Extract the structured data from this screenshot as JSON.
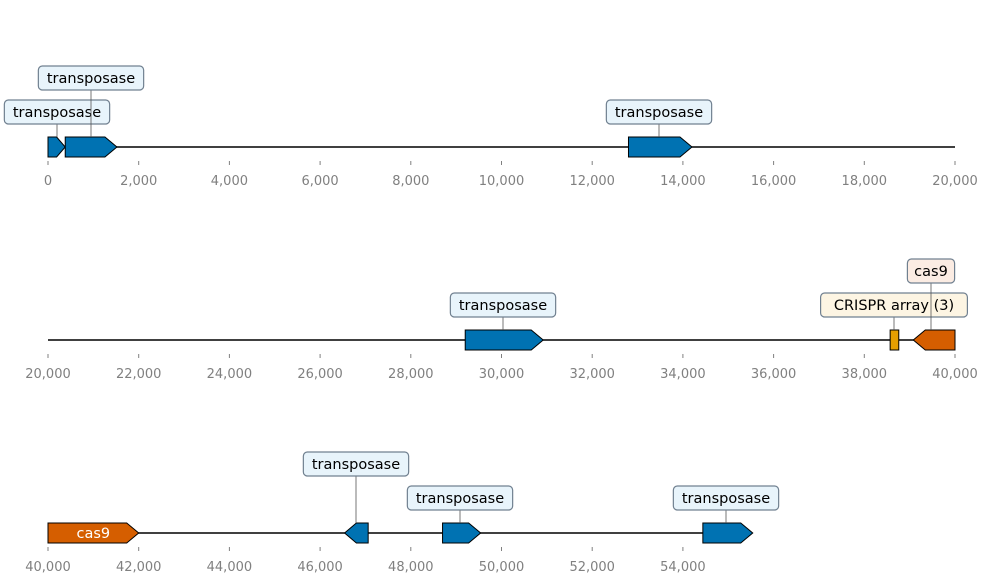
{
  "colors": {
    "transposase": "#0072b2",
    "crispr_array": "#e69f00",
    "cas9": "#d55e00",
    "transposase_box": "#e8f4fb",
    "crispr_box": "#fdf5e3",
    "cas9_box": "#fbece3",
    "box_border": "#708090",
    "tick_text": "#808080"
  },
  "tracks": [
    {
      "ticks": [
        "0",
        "2,000",
        "4,000",
        "6,000",
        "8,000",
        "10,000",
        "12,000",
        "14,000",
        "16,000",
        "18,000",
        "20,000"
      ],
      "features": [
        {
          "label": "transposase",
          "kind": "transposase",
          "start": 0,
          "end": 380,
          "strand": 1
        },
        {
          "label": "transposase",
          "kind": "transposase",
          "start": 380,
          "end": 1520,
          "strand": 1
        },
        {
          "label": "transposase",
          "kind": "transposase",
          "start": 12800,
          "end": 14200,
          "strand": 1
        }
      ]
    },
    {
      "ticks": [
        "20,000",
        "22,000",
        "24,000",
        "26,000",
        "28,000",
        "30,000",
        "32,000",
        "34,000",
        "36,000",
        "38,000",
        "40,000"
      ],
      "features": [
        {
          "label": "transposase",
          "kind": "transposase",
          "start": 29200,
          "end": 30920,
          "strand": 1
        },
        {
          "label": "CRISPR array (3)",
          "kind": "crispr_array",
          "start": 38570,
          "end": 38760,
          "strand": 0
        },
        {
          "label": "cas9",
          "kind": "cas9",
          "start": 39080,
          "end": 40000,
          "strand": -1
        }
      ]
    },
    {
      "ticks": [
        "40,000",
        "42,000",
        "44,000",
        "46,000",
        "48,000",
        "50,000",
        "52,000",
        "54,000"
      ],
      "features": [
        {
          "label": "cas9",
          "kind": "cas9",
          "start": 40000,
          "end": 42000,
          "strand": 1,
          "inline_label": true
        },
        {
          "label": "transposase",
          "kind": "transposase",
          "start": 46540,
          "end": 47060,
          "strand": -1
        },
        {
          "label": "transposase",
          "kind": "transposase",
          "start": 48700,
          "end": 49540,
          "strand": 1
        },
        {
          "label": "transposase",
          "kind": "transposase",
          "start": 54440,
          "end": 55540,
          "strand": 1
        }
      ]
    }
  ]
}
